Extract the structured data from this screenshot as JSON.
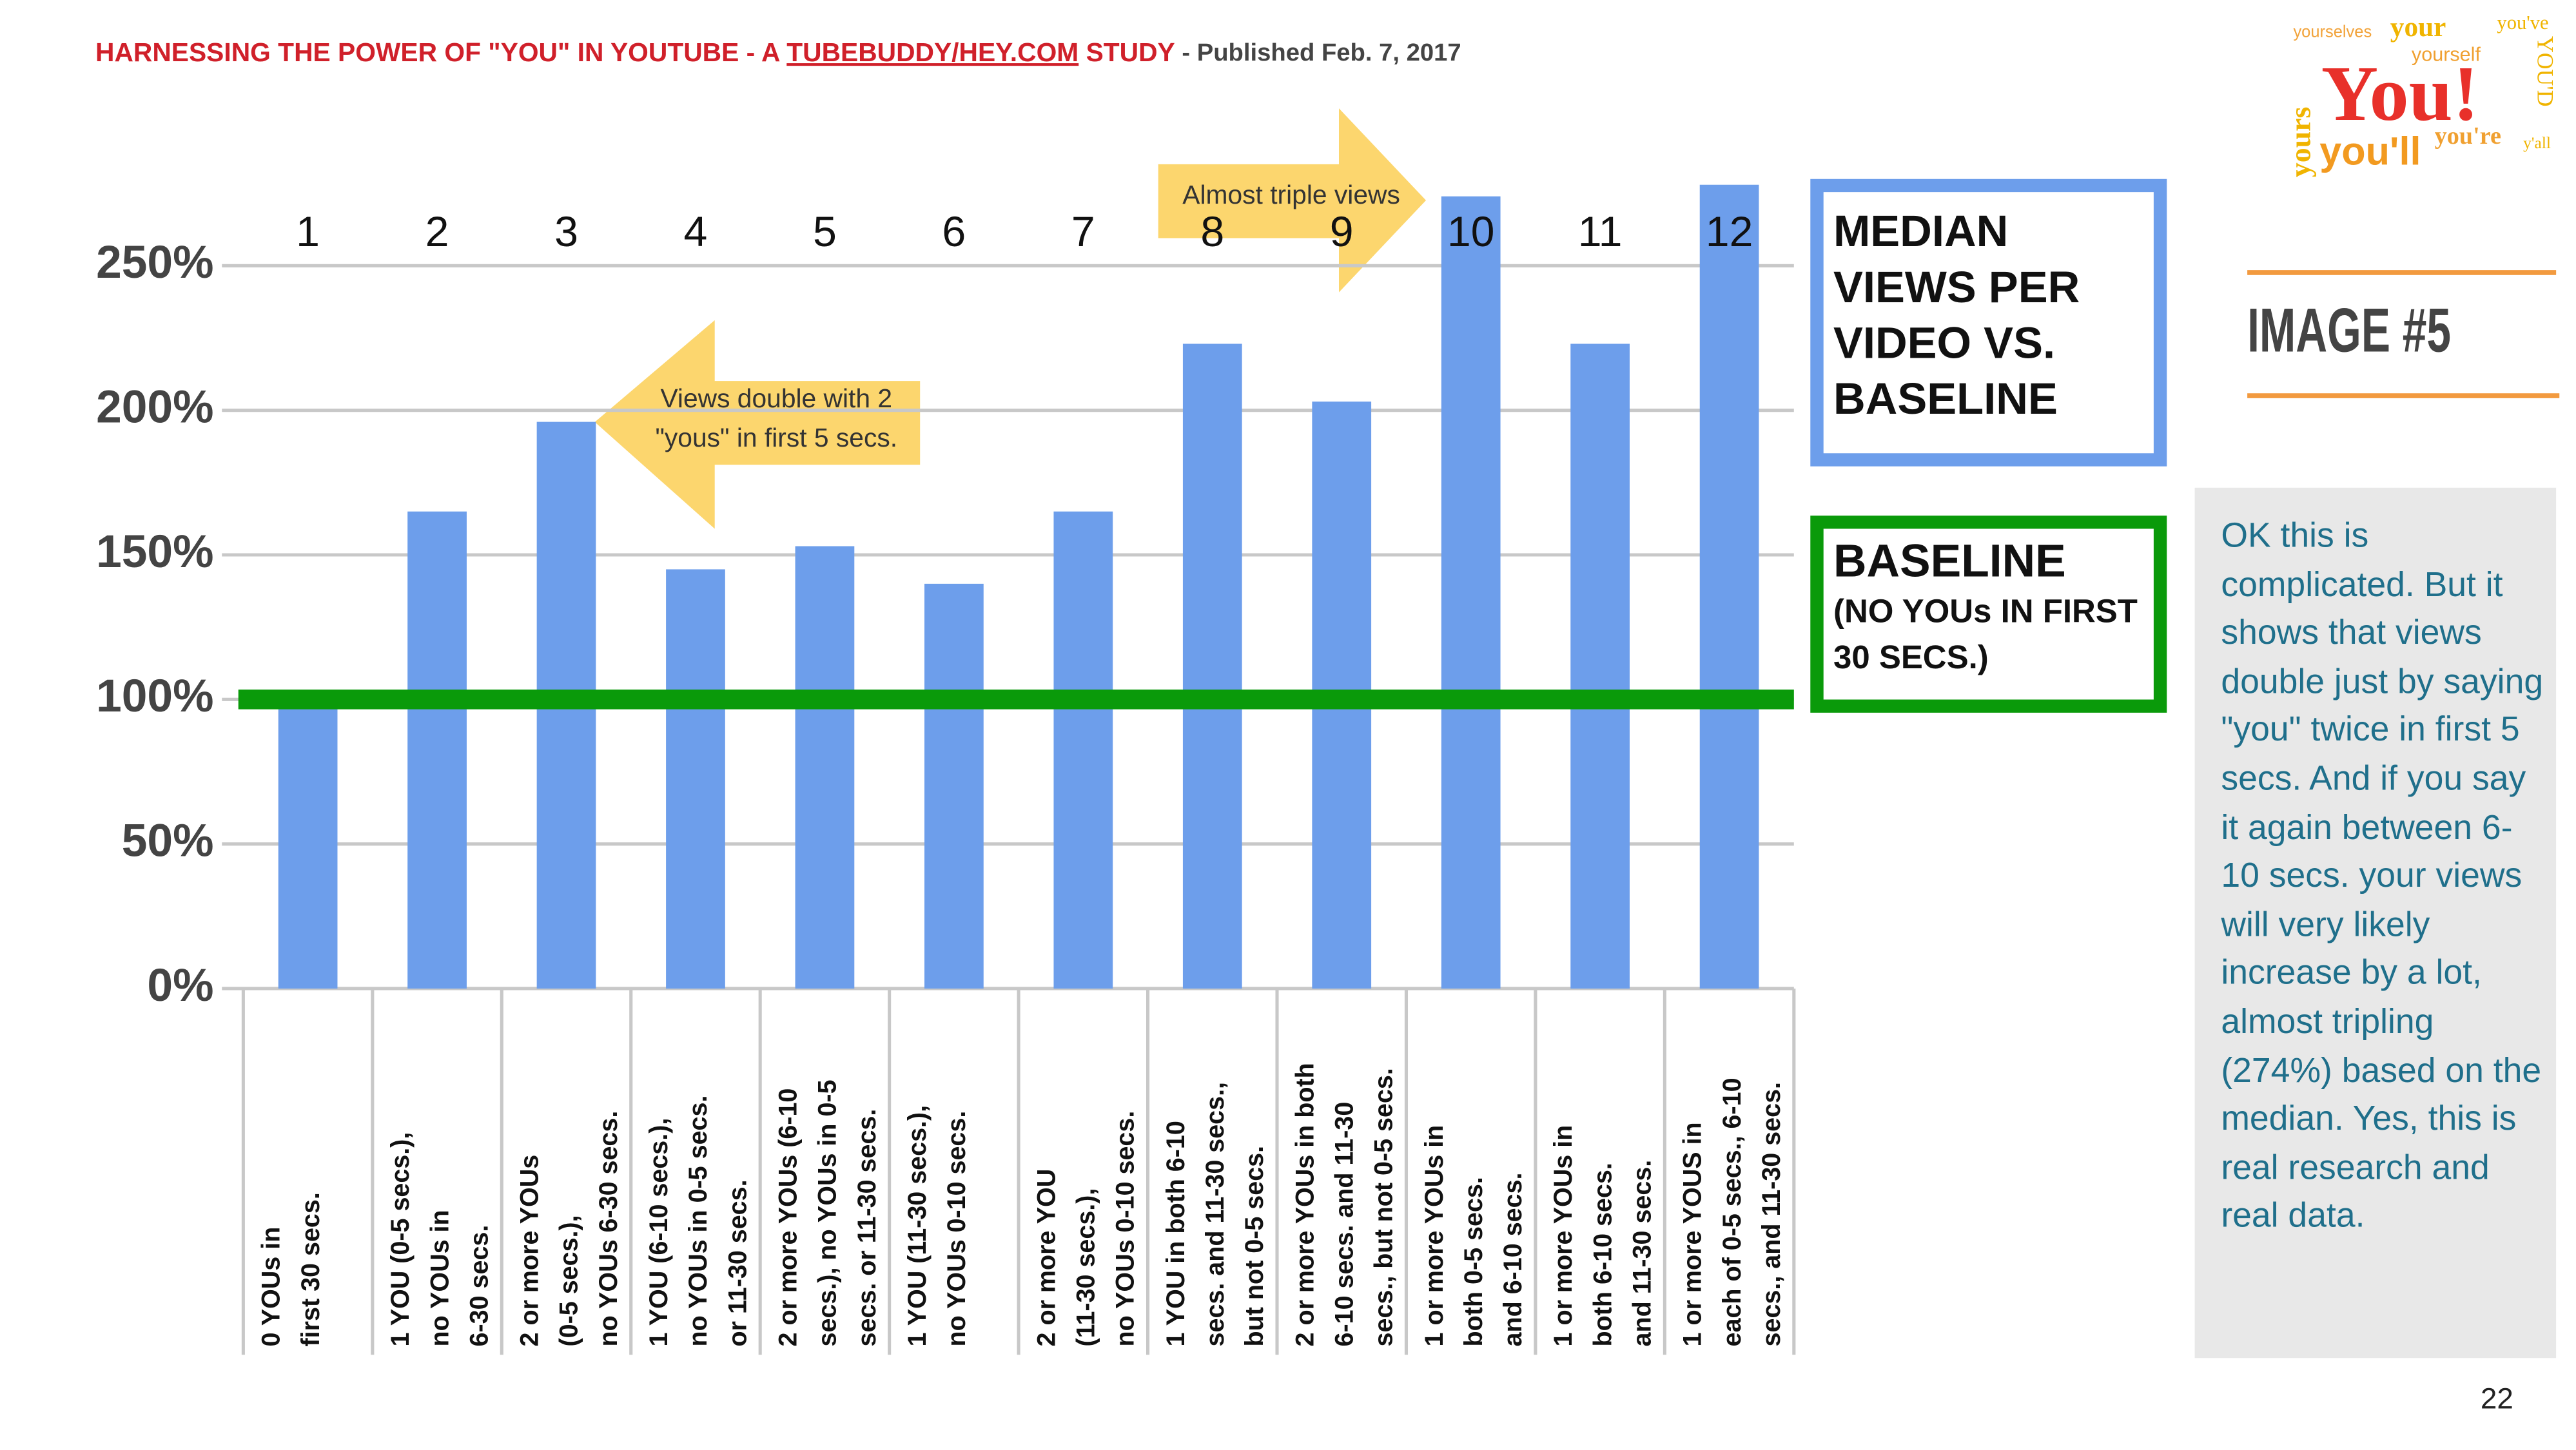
{
  "header": {
    "title": "HARNESSING THE POWER OF \"YOU\" IN YOUTUBE - A ",
    "link": "TUBEBUDDY/HEY.COM",
    "title_end": " STUDY",
    "published": " - Published Feb. 7, 2017"
  },
  "logo": {
    "words": [
      "yourselves",
      "your",
      "you've",
      "yourself",
      "You!",
      "YOU'D",
      "yours",
      "you'll",
      "you're",
      "y'all"
    ]
  },
  "image_label": "IMAGE #5",
  "note": "OK this is complicated. But it shows that views double just by saying \"you\" twice in first 5 secs. And if you say it again between 6-10 secs. your views will very likely increase by a lot, almost tripling (274%) based on the median. Yes, this is real research and real data.",
  "page_number": "22",
  "chart_data": {
    "type": "bar",
    "bar_numbers": [
      1,
      2,
      3,
      4,
      5,
      6,
      7,
      8,
      9,
      10,
      11,
      12
    ],
    "categories": [
      [
        "0 YOUs in",
        "first 30 secs."
      ],
      [
        "1 YOU (0-5 secs.),",
        "no YOUs in",
        "6-30 secs."
      ],
      [
        "2 or more YOUs",
        "(0-5 secs.),",
        "no YOUs 6-30 secs."
      ],
      [
        "1 YOU (6-10 secs.),",
        "no YOUs in 0-5 secs.",
        "or 11-30 secs."
      ],
      [
        "2 or more YOUs (6-10",
        "secs.), no YOUs in 0-5",
        "secs. or 11-30 secs."
      ],
      [
        "1 YOU (11-30 secs.),",
        "no YOUs 0-10 secs."
      ],
      [
        "2 or more YOU",
        "(11-30 secs.),",
        "no YOUs 0-10 secs."
      ],
      [
        "1 YOU in both 6-10",
        "secs. and 11-30 secs.,",
        "but not 0-5 secs."
      ],
      [
        "2 or more YOUs in both",
        "6-10 secs. and 11-30",
        "secs., but not 0-5 secs."
      ],
      [
        "1 or more YOUs in",
        "both 0-5 secs.",
        "and 6-10 secs."
      ],
      [
        "1 or more YOUs in",
        "both 6-10 secs.",
        "and 11-30 secs."
      ],
      [
        "1 or more YOUS in",
        "each of 0-5 secs., 6-10",
        "secs., and 11-30 secs."
      ]
    ],
    "series": [
      {
        "name": "MEDIAN VIEWS PER VIDEO VS. BASELINE",
        "color": "#6d9eeb",
        "values": [
          100,
          165,
          196,
          145,
          153,
          140,
          165,
          223,
          203,
          274,
          223,
          278
        ]
      }
    ],
    "baseline": {
      "value": 100,
      "name": "BASELINE",
      "note": "(NO YOUs IN FIRST 30 SECS.)",
      "color": "#0a9a0a"
    },
    "annotations": [
      "Views double with 2 \"yous\" in first 5 secs.",
      "Almost triple views"
    ],
    "ylim": [
      0,
      280
    ],
    "yticks": [
      {
        "value": 0,
        "label": "0%"
      },
      {
        "value": 50,
        "label": "50%"
      },
      {
        "value": 100,
        "label": "100%"
      },
      {
        "value": 150,
        "label": "150%"
      },
      {
        "value": 200,
        "label": "200%"
      },
      {
        "value": 250,
        "label": "250%"
      }
    ],
    "grid": true
  }
}
